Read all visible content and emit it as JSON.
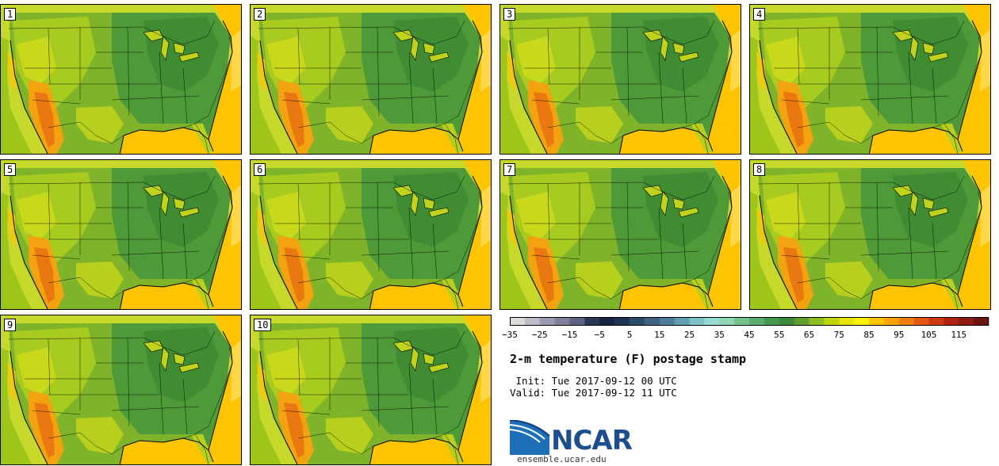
{
  "panels": [
    "1",
    "2",
    "3",
    "4",
    "5",
    "6",
    "7",
    "8",
    "9",
    "10"
  ],
  "legend": {
    "colors": [
      "#dcdcdc",
      "#bdbdc9",
      "#9a9ab2",
      "#7e7f99",
      "#5d6482",
      "#2b3556",
      "#152440",
      "#1d3454",
      "#2c4a6a",
      "#3d6282",
      "#4d7d98",
      "#60a1b1",
      "#7bc3c6",
      "#94dbd3",
      "#8fd6b4",
      "#73c28d",
      "#5aae6f",
      "#459a50",
      "#3b8c3a",
      "#5e9e2a",
      "#8dbd1e",
      "#bfd60e",
      "#e6e400",
      "#fff200",
      "#ffc600",
      "#ffa500",
      "#f57e0c",
      "#e65914",
      "#cf3a12",
      "#b02310",
      "#8f1b10",
      "#6b1410"
    ],
    "tick_labels": [
      "−35",
      "−25",
      "−15",
      "−5",
      "5",
      "15",
      "25",
      "35",
      "45",
      "55",
      "65",
      "75",
      "85",
      "95",
      "105",
      "115"
    ]
  },
  "title": "2-m temperature (F) postage stamp",
  "init_line": " Init: Tue 2017-09-12 00 UTC",
  "valid_line": "Valid: Tue 2017-09-12 11 UTC",
  "logo_text": "NCAR",
  "site": "ensemble.ucar.edu"
}
